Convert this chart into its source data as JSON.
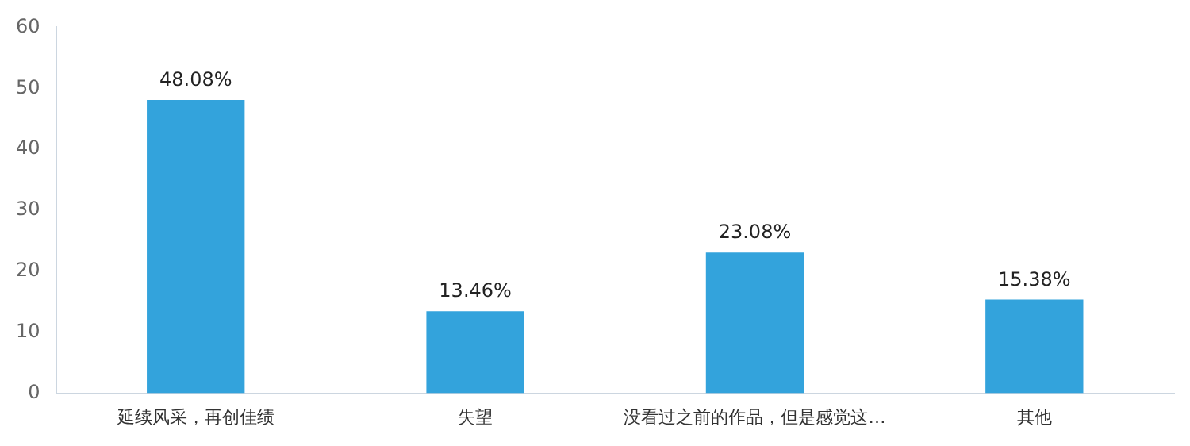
{
  "chart_data": {
    "type": "bar",
    "categories": [
      "延续风采，再创佳绩",
      "失望",
      "没看过之前的作品，但是感觉这…",
      "其他"
    ],
    "values": [
      48.08,
      13.46,
      23.08,
      15.38
    ],
    "color": "#33a3dc",
    "value_labels": [
      "48.08%",
      "13.46%",
      "23.08%",
      "15.38%"
    ],
    "ylim": [
      0,
      60
    ],
    "yticks": [
      0,
      10,
      20,
      30,
      40,
      50,
      60
    ],
    "grid": false,
    "legend": false
  }
}
